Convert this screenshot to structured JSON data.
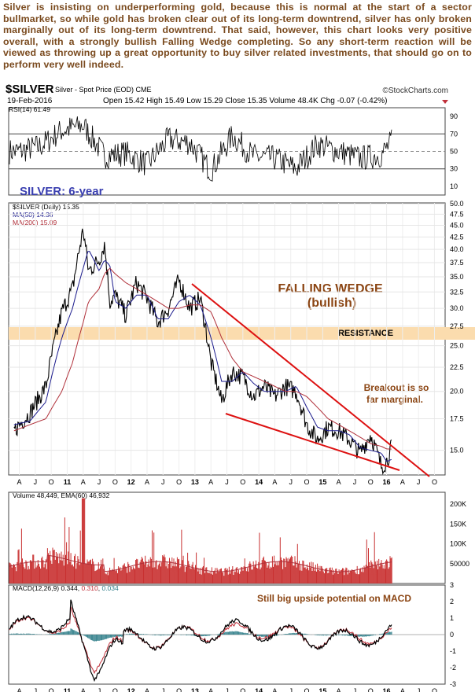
{
  "intro": "Silver is insisting on underperforming gold, because this is normal at the start of a sector bullmarket, so while gold has broken clear out of its long-term downtrend, silver has only broken marginally out of its long-term downtrend. That said, however, this chart looks very positive overall, with a strongly bullish Falling Wedge completing. So any short-term reaction will be viewed as throwing up a great opportunity to buy silver related investments, that should go on to perform very well indeed.",
  "header": {
    "symbol": "$SILVER",
    "subtitle": "Silver - Spot Price (EOD)  CME",
    "source": "©StockCharts.com",
    "date": "19-Feb-2016",
    "open_label": "Open",
    "open": "15.42",
    "high_label": "High",
    "high": "15.49",
    "low_label": "Low",
    "low": "15.29",
    "close_label": "Close",
    "close": "15.35",
    "volume_label": "Volume",
    "volume": "48.4K",
    "chg_label": "Chg",
    "chg": "-0.07 (-0.42%)"
  },
  "colors": {
    "price": "#000000",
    "ma50": "#1a1a8c",
    "ma200": "#b0303a",
    "wedge": "#dd1111",
    "resistance": "#fbdcae",
    "annotation": "#8b4513",
    "volume": "#c83030",
    "ema60": "#b0303a",
    "macd": "#000000",
    "signal": "#c0303a",
    "histogram": "#2e7d88",
    "title6yr": "#3a3fb0"
  },
  "chart_data": [
    {
      "type": "line",
      "title": "RSI(14) 61.49",
      "indicator": "RSI(14)",
      "last": "61.49",
      "ylim": [
        0,
        100
      ],
      "y_ticks": [
        "90",
        "70",
        "50",
        "30",
        "10"
      ],
      "reference_lines": [
        70,
        50,
        30
      ],
      "annotation": "SILVER: 6-year",
      "x": [
        "2010-04",
        "2010-08",
        "2010-12",
        "2011-04",
        "2011-08",
        "2011-12",
        "2012-04",
        "2012-08",
        "2012-12",
        "2013-04",
        "2013-08",
        "2013-12",
        "2014-04",
        "2014-08",
        "2014-12",
        "2015-04",
        "2015-08",
        "2015-12",
        "2016-02"
      ],
      "values": [
        50,
        56,
        74,
        80,
        45,
        48,
        35,
        64,
        60,
        28,
        68,
        44,
        42,
        30,
        58,
        50,
        42,
        46,
        61.49
      ]
    },
    {
      "type": "line",
      "title": "$SILVER (Daily) 15.35",
      "legend": [
        {
          "name": "$SILVER (Daily)",
          "last": "15.35"
        },
        {
          "name": "MA(50)",
          "last": "14.36"
        },
        {
          "name": "MA(200)",
          "last": "15.09"
        }
      ],
      "x_tick_labels": [
        "A",
        "J",
        "O",
        "11",
        "A",
        "J",
        "O",
        "12",
        "A",
        "J",
        "O",
        "13",
        "A",
        "J",
        "O",
        "14",
        "A",
        "J",
        "O",
        "15",
        "A",
        "J",
        "O",
        "16",
        "A",
        "J",
        "O"
      ],
      "y_ticks": [
        "50.0",
        "47.5",
        "45.0",
        "42.5",
        "40.0",
        "37.5",
        "35.0",
        "32.5",
        "30.0",
        "27.5",
        "25.0",
        "22.5",
        "20.0",
        "17.5",
        "15.0"
      ],
      "ylim": [
        13.3,
        50.2
      ],
      "log_scale": true,
      "grid": true,
      "x": [
        "2010-03",
        "2010-06",
        "2010-09",
        "2010-12",
        "2011-02",
        "2011-04",
        "2011-05",
        "2011-07",
        "2011-08",
        "2011-09",
        "2011-10",
        "2011-12",
        "2012-02",
        "2012-04",
        "2012-06",
        "2012-08",
        "2012-10",
        "2012-12",
        "2013-02",
        "2013-04",
        "2013-06",
        "2013-08",
        "2013-10",
        "2013-12",
        "2014-02",
        "2014-04",
        "2014-06",
        "2014-08",
        "2014-10",
        "2014-12",
        "2015-02",
        "2015-04",
        "2015-06",
        "2015-08",
        "2015-10",
        "2015-12",
        "2016-01",
        "2016-02"
      ],
      "series": [
        {
          "name": "$SILVER (Daily)",
          "values": [
            16.5,
            18,
            20.5,
            29.5,
            33,
            44,
            36,
            38,
            41,
            31,
            32,
            29,
            34,
            31.5,
            28,
            30,
            34.5,
            30,
            31.5,
            23,
            19,
            22,
            21.5,
            19.5,
            20.5,
            19.5,
            20.5,
            20,
            17,
            15.8,
            16.8,
            16.5,
            15.8,
            14.8,
            16.2,
            13.9,
            14.2,
            15.35
          ]
        },
        {
          "name": "MA(50)",
          "values": [
            17,
            17.3,
            19,
            26,
            30,
            36.5,
            40,
            36,
            38,
            37,
            31,
            30,
            32,
            32,
            28.5,
            28.5,
            31,
            32,
            30.5,
            26,
            21,
            21,
            22,
            20.8,
            20,
            20,
            20,
            20.5,
            18.5,
            16.8,
            16.5,
            16.5,
            16.2,
            15.2,
            15,
            14.8,
            14.2,
            14.36
          ]
        },
        {
          "name": "MA(200)",
          "values": [
            16.5,
            17,
            17.5,
            20,
            23,
            28,
            31,
            33,
            35.5,
            36.5,
            35.5,
            34,
            33,
            32,
            31,
            30,
            30,
            30.5,
            30.5,
            29.5,
            26,
            23.5,
            22,
            21.5,
            21,
            20.5,
            20,
            20,
            19.5,
            18.5,
            17.5,
            17,
            16.5,
            16,
            15.5,
            15.3,
            15.1,
            15.09
          ]
        }
      ],
      "annotations": {
        "pattern_title": "FALLING WEDGE",
        "pattern_sub": "(bullish)",
        "resistance": "RESISTANCE",
        "breakout_1": "Breakout is so",
        "breakout_2": "far marginal."
      }
    },
    {
      "type": "bar",
      "title": "Volume 48,449, EMA(60) 46,932",
      "legend": [
        {
          "name": "Volume",
          "last": "48,449"
        },
        {
          "name": "EMA(60)",
          "last": "46,932"
        }
      ],
      "y_ticks": [
        "200K",
        "150K",
        "100K",
        "50000"
      ],
      "ylim": [
        0,
        230000
      ]
    },
    {
      "type": "line",
      "title": "MACD(12,26,9) 0.344, 0.310, 0.034",
      "legend": [
        {
          "name": "MACD(12,26,9)",
          "last": "0.344"
        },
        {
          "name": "signal",
          "last": "0.310"
        },
        {
          "name": "histogram",
          "last": "0.034"
        }
      ],
      "y_ticks": [
        "3",
        "2",
        "1",
        "0",
        "-1",
        "-2",
        "-3"
      ],
      "ylim": [
        -3,
        3
      ],
      "annotation": "Still big upside potential on MACD",
      "x_tick_labels": [
        "A",
        "J",
        "O",
        "11",
        "A",
        "J",
        "O",
        "12",
        "A",
        "J",
        "O",
        "13",
        "A",
        "J",
        "O",
        "14",
        "A",
        "J",
        "O",
        "15",
        "A",
        "J",
        "O",
        "16",
        "A",
        "J",
        "O"
      ]
    }
  ]
}
